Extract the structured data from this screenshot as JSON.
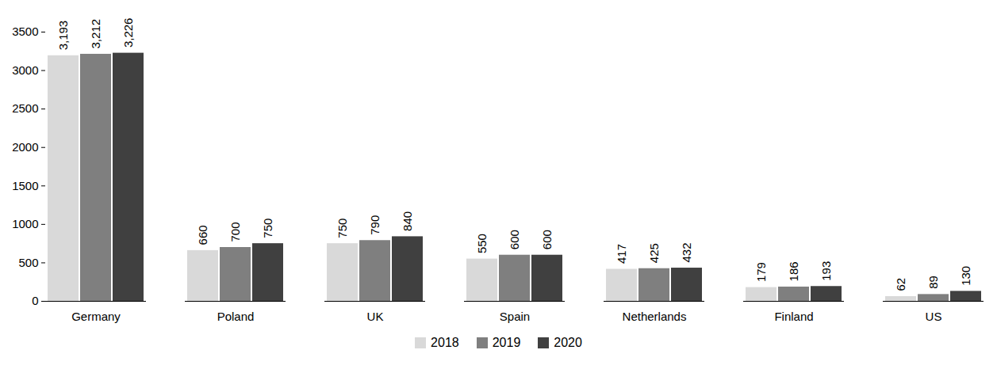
{
  "chart_data": {
    "type": "bar",
    "categories": [
      "Germany",
      "Poland",
      "UK",
      "Spain",
      "Netherlands",
      "Finland",
      "US"
    ],
    "series": [
      {
        "name": "2018",
        "color": "#d9d9d9",
        "values": [
          3193,
          660,
          750,
          550,
          417,
          179,
          62
        ],
        "value_labels": [
          "3,193",
          "660",
          "750",
          "550",
          "417",
          "179",
          "62"
        ]
      },
      {
        "name": "2019",
        "color": "#7f7f7f",
        "values": [
          3212,
          700,
          790,
          600,
          425,
          186,
          89
        ],
        "value_labels": [
          "3,212",
          "700",
          "790",
          "600",
          "425",
          "186",
          "89"
        ]
      },
      {
        "name": "2020",
        "color": "#404040",
        "values": [
          3226,
          750,
          840,
          600,
          432,
          193,
          130
        ],
        "value_labels": [
          "3,226",
          "750",
          "840",
          "600",
          "432",
          "193",
          "130"
        ]
      }
    ],
    "ylim": [
      0,
      3500
    ],
    "yticks": [
      0,
      500,
      1000,
      1500,
      2000,
      2500,
      3000,
      3500
    ],
    "grid": false,
    "data_labels": true,
    "legend": "bottom"
  }
}
